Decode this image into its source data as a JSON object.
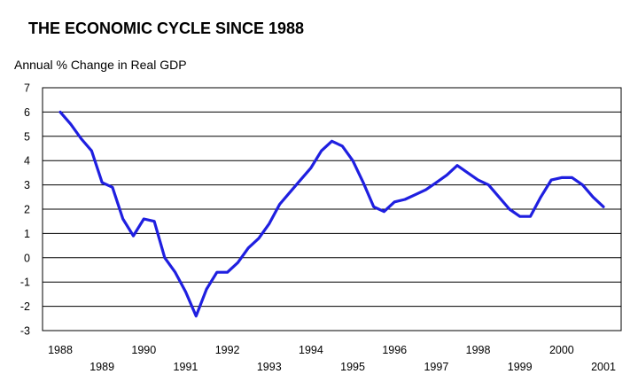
{
  "chart_data": {
    "type": "line",
    "title": "THE ECONOMIC CYCLE SINCE 1988",
    "ylabel": "Annual % Change in Real GDP",
    "xlabel": "",
    "xlim": [
      1988,
      2001.5
    ],
    "ylim": [
      -3,
      7
    ],
    "yticks": [
      7,
      6,
      5,
      4,
      3,
      2,
      1,
      0,
      -1,
      -2,
      -3
    ],
    "xticks_upper": [
      "1988",
      "1990",
      "1992",
      "1994",
      "1996",
      "1998",
      "2000"
    ],
    "xticks_lower": [
      "1989",
      "1991",
      "1993",
      "1995",
      "1997",
      "1999",
      "2001"
    ],
    "grid": true,
    "legend": "none",
    "series": [
      {
        "color": "#1f1fe0",
        "x": [
          1988.0,
          1988.25,
          1988.5,
          1988.75,
          1989.0,
          1989.25,
          1989.5,
          1989.75,
          1990.0,
          1990.25,
          1990.5,
          1990.75,
          1991.0,
          1991.25,
          1991.5,
          1991.75,
          1992.0,
          1992.25,
          1992.5,
          1992.75,
          1993.0,
          1993.25,
          1993.5,
          1993.75,
          1994.0,
          1994.25,
          1994.5,
          1994.75,
          1995.0,
          1995.25,
          1995.5,
          1995.75,
          1996.0,
          1996.25,
          1996.5,
          1996.75,
          1997.0,
          1997.25,
          1997.5,
          1997.75,
          1998.0,
          1998.25,
          1998.5,
          1998.75,
          1999.0,
          1999.25,
          1999.5,
          1999.75,
          2000.0,
          2000.25,
          2000.5,
          2000.75,
          2001.0
        ],
        "values": [
          6.0,
          5.5,
          4.9,
          4.4,
          3.1,
          2.9,
          1.6,
          0.9,
          1.6,
          1.5,
          0.0,
          -0.6,
          -1.4,
          -2.4,
          -1.3,
          -0.6,
          -0.6,
          -0.2,
          0.4,
          0.8,
          1.4,
          2.2,
          2.7,
          3.2,
          3.7,
          4.4,
          4.8,
          4.6,
          4.0,
          3.1,
          2.1,
          1.9,
          2.3,
          2.4,
          2.6,
          2.8,
          3.1,
          3.4,
          3.8,
          3.5,
          3.2,
          3.0,
          2.5,
          2.0,
          1.7,
          1.7,
          2.5,
          3.2,
          3.3,
          3.3,
          3.0,
          2.5,
          2.1
        ]
      }
    ]
  }
}
